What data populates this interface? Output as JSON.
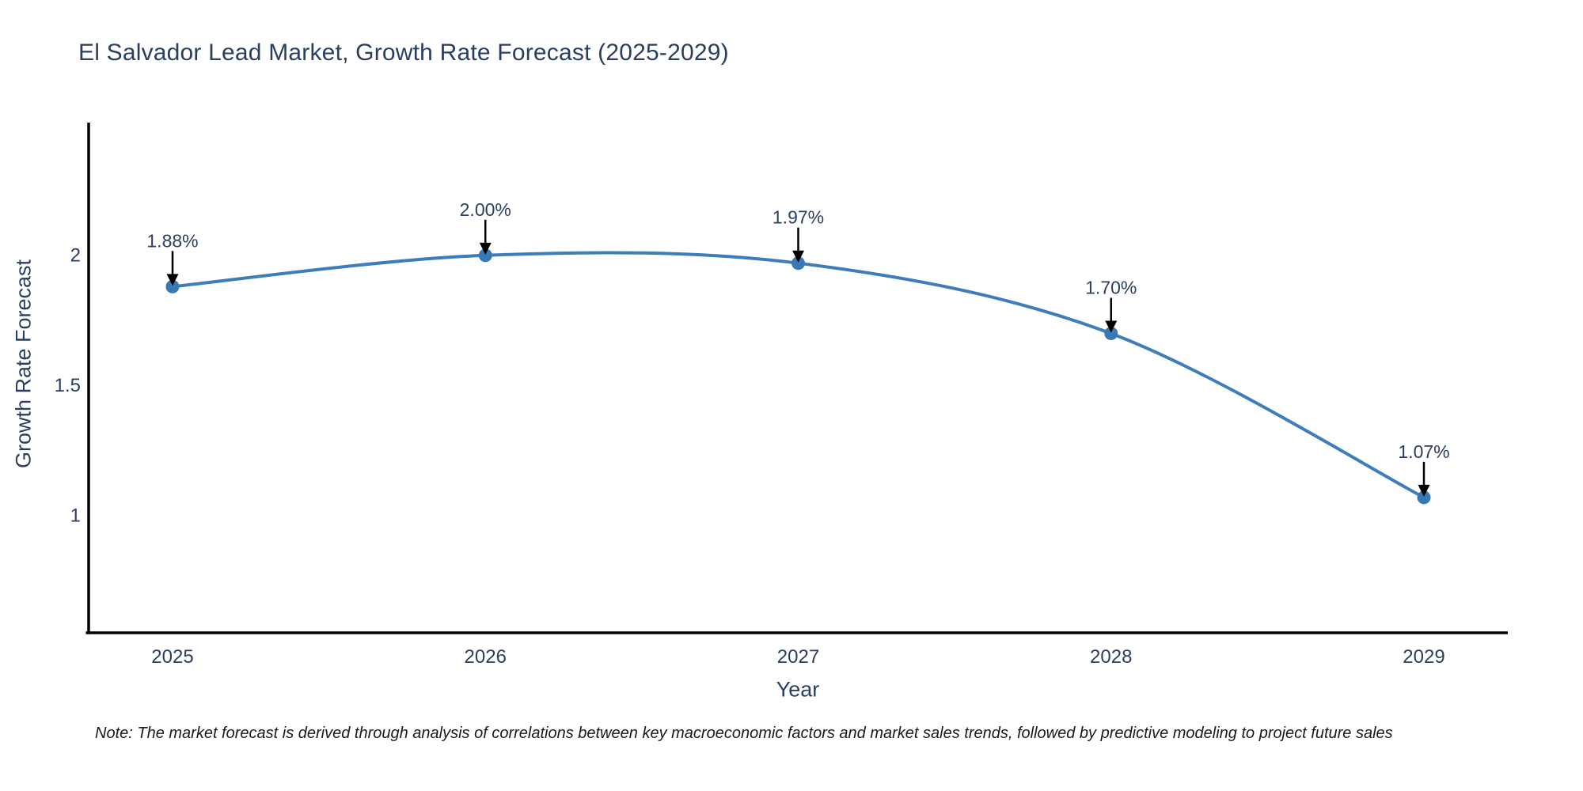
{
  "title": "El Salvador Lead Market, Growth Rate Forecast (2025-2029)",
  "note": "Note: The market forecast is derived through analysis of correlations between key macroeconomic factors and market sales trends, followed by predictive modeling to project future sales",
  "colors": {
    "text": "#2a3f5f",
    "line": "#3d7dba",
    "marker": "#3878b4",
    "axis": "#000000",
    "arrow": "#000000",
    "note_text": "#1a1a1a",
    "background": "#ffffff"
  },
  "chart_data": {
    "type": "line",
    "title": "El Salvador Lead Market, Growth Rate Forecast (2025-2029)",
    "categories": [
      "2025",
      "2026",
      "2027",
      "2028",
      "2029"
    ],
    "values": [
      1.88,
      2.0,
      1.97,
      1.7,
      1.07
    ],
    "point_labels": [
      "1.88%",
      "2.00%",
      "1.97%",
      "1.70%",
      "1.07%"
    ],
    "xlabel": "Year",
    "ylabel": "Growth Rate Forecast",
    "yticks": [
      1,
      1.5,
      2
    ],
    "ytick_labels": [
      "1",
      "1.5",
      "2"
    ],
    "ylim": [
      0.55,
      2.51
    ],
    "line_shape": "spline",
    "grid": false,
    "legend": "none",
    "annotation_style": "value label with downward black arrow above each data point"
  }
}
